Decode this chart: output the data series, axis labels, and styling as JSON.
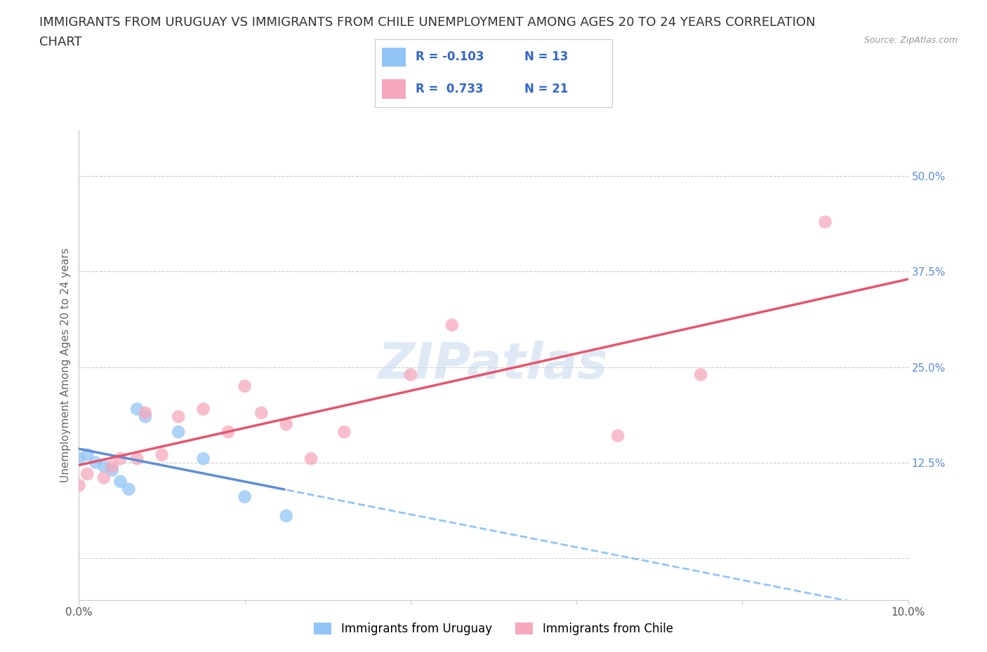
{
  "title_line1": "IMMIGRANTS FROM URUGUAY VS IMMIGRANTS FROM CHILE UNEMPLOYMENT AMONG AGES 20 TO 24 YEARS CORRELATION",
  "title_line2": "CHART",
  "source": "Source: ZipAtlas.com",
  "ylabel": "Unemployment Among Ages 20 to 24 years",
  "xlim": [
    0.0,
    0.1
  ],
  "ylim": [
    -0.055,
    0.56
  ],
  "yticks": [
    0.0,
    0.125,
    0.25,
    0.375,
    0.5
  ],
  "yticklabels": [
    "",
    "12.5%",
    "25.0%",
    "37.5%",
    "50.0%"
  ],
  "xtick_positions": [
    0.0,
    0.02,
    0.04,
    0.06,
    0.08,
    0.1
  ],
  "xticklabels": [
    "0.0%",
    "",
    "",
    "",
    "",
    "10.0%"
  ],
  "watermark_text": "ZIPatlas",
  "color_uruguay": "#92c5f7",
  "color_chile": "#f7a8bc",
  "color_trend_uruguay_solid": "#5b8dd9",
  "color_trend_uruguay_dashed": "#92c5f7",
  "color_trend_chile": "#e8546a",
  "background_color": "#ffffff",
  "grid_color": "#cccccc",
  "uruguay_x": [
    0.0,
    0.001,
    0.002,
    0.003,
    0.004,
    0.005,
    0.006,
    0.007,
    0.008,
    0.012,
    0.015,
    0.02,
    0.025
  ],
  "uruguay_y": [
    0.13,
    0.135,
    0.125,
    0.12,
    0.115,
    0.1,
    0.09,
    0.195,
    0.185,
    0.165,
    0.13,
    0.08,
    0.055
  ],
  "chile_x": [
    0.0,
    0.001,
    0.003,
    0.004,
    0.005,
    0.007,
    0.008,
    0.01,
    0.012,
    0.015,
    0.018,
    0.02,
    0.022,
    0.025,
    0.028,
    0.032,
    0.04,
    0.045,
    0.065,
    0.075,
    0.09
  ],
  "chile_y": [
    0.095,
    0.11,
    0.105,
    0.12,
    0.13,
    0.13,
    0.19,
    0.135,
    0.185,
    0.195,
    0.165,
    0.225,
    0.19,
    0.175,
    0.13,
    0.165,
    0.24,
    0.305,
    0.16,
    0.24,
    0.44
  ],
  "trend_solid_end": 0.025,
  "legend_r1": "R = -0.103",
  "legend_n1": "N = 13",
  "legend_r2": "R =  0.733",
  "legend_n2": "N = 21",
  "legend_color_r": "#3366cc",
  "legend_color_n": "#3366cc",
  "tick_color_y": "#5b8dd9",
  "tick_color_x": "#555555",
  "title_fontsize": 13,
  "axis_label_fontsize": 11,
  "tick_fontsize": 11,
  "legend_fontsize": 13,
  "marker_size": 180
}
